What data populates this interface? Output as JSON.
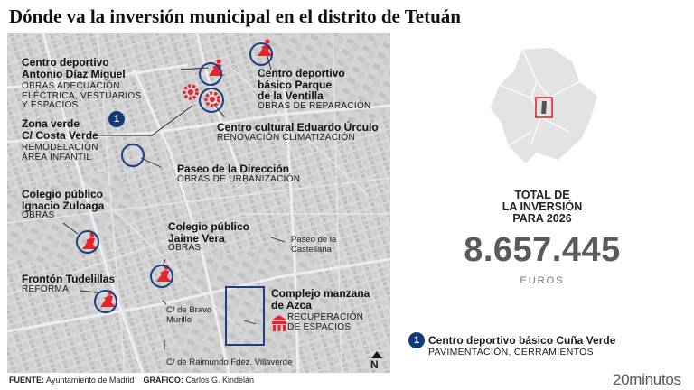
{
  "title": "Dónde va la inversión municipal en el distrito de Tetuán",
  "map": {
    "north_label": "N",
    "icon_colors": {
      "work": "#e4252c",
      "ring": "#1b3f85",
      "badge": "#123a7a"
    },
    "sites": [
      {
        "name": "Centro deportivo\nAntonio Díaz Miguel",
        "detail": "OBRAS ADECUACIÓN\nELÉCTRICA, VESTUARIOS\nY ESPACIOS",
        "icon": "construction-icon"
      },
      {
        "name": "Centro deportivo\nbásico Parque\nde la Ventilla",
        "detail": "OBRAS DE REPARACIÓN",
        "icon": "construction-icon"
      },
      {
        "name": "Zona verde\nC/ Costa Verde",
        "detail": "REMODELACIÓN\nÁREA INFANTIL",
        "icon": "construction-icon"
      },
      {
        "name": "Centro cultural Eduardo Úrculo",
        "detail": "RENOVACIÓN CLIMATIZACIÓN",
        "icon": "gear-icon"
      },
      {
        "name": "Paseo de la Dirección",
        "detail": "OBRAS DE URBANIZACIÓN",
        "icon": "ring-icon"
      },
      {
        "name": "Colegio público\nIgnacio Zuloaga",
        "detail": "OBRAS",
        "icon": "construction-icon"
      },
      {
        "name": "Colegio público\nJaime Vera",
        "detail": "OBRAS",
        "icon": "construction-icon"
      },
      {
        "name": "Frontón Tudelillas",
        "detail": "REFORMA",
        "icon": "construction-icon"
      },
      {
        "name": "Complejo manzana\nde Azca",
        "detail": "RECUPERACIÓN\nDE ESPACIOS",
        "icon": "building-icon"
      }
    ],
    "streets": [
      "Paseo de la\nCastellana",
      "C/ de Bravo\nMurillo",
      "C/ de Raimundo Fdez. Villaverde"
    ],
    "badge_number": "1"
  },
  "total": {
    "label": "TOTAL DE\nLA INVERSIÓN\nPARA 2026",
    "value": "8.657.445",
    "unit": "EUROS"
  },
  "legend": {
    "number": "1",
    "name": "Centro deportivo básico Cuña Verde",
    "detail": "PAVIMENTACIÓN, CERRAMIENTOS"
  },
  "footer": {
    "source_label": "FUENTE:",
    "source": "Ayuntamiento de Madrid",
    "graphic_label": "GRÁFICO:",
    "graphic": "Carlos G. Kindelán",
    "brand": "20minutos"
  }
}
